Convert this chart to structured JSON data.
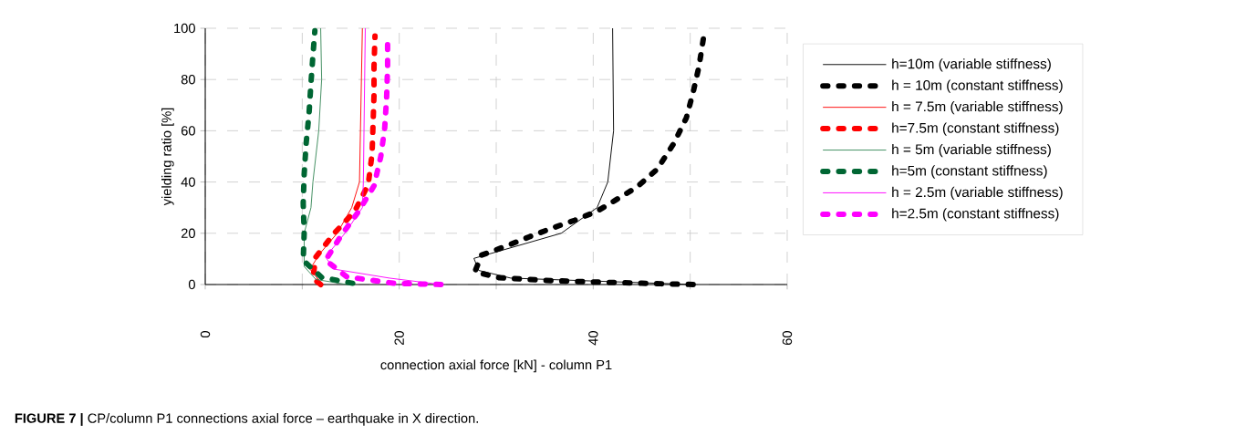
{
  "chart_data": {
    "type": "line",
    "xlabel": "connection axial force [kN] - column P1",
    "ylabel": "yielding ratio [%]",
    "annotations": [
      "**FIGURE 7 |** CP/column P1 connections axial force – earthquake in X direction."
    ],
    "xlim": [
      0,
      60
    ],
    "ylim": [
      0,
      100
    ],
    "xticks": [
      0,
      {
        "value": 10,
        "label": null
      },
      20,
      {
        "value": 30,
        "label": null
      },
      40,
      {
        "value": 50,
        "label": null
      },
      60
    ],
    "yticks": [
      0,
      20,
      40,
      60,
      80,
      100
    ],
    "grid": true,
    "legend": "right",
    "series": [
      {
        "name": "h=10m (variable stiffness)",
        "color": "#000000",
        "line_style": "solid",
        "x": [
          50.3,
          31.5,
          28.2,
          27.7,
          36.7,
          40.4,
          41.5,
          42.1,
          42.0
        ],
        "values": [
          0,
          2.5,
          5.5,
          10.2,
          20,
          30,
          40,
          60,
          100
        ]
      },
      {
        "name": "h = 10m (constant stiffness)",
        "color": "#000000",
        "line_style": "dashed",
        "x": [
          50.3,
          45,
          40,
          35,
          30.2,
          27.8,
          28.5,
          30.9,
          33.4,
          35.6,
          38.1,
          40.4,
          42.2,
          44.5,
          46.6,
          48.3,
          49.6,
          50.3,
          50.9,
          51.4
        ],
        "values": [
          0,
          0.5,
          1,
          1.6,
          2.7,
          5,
          11.5,
          14.8,
          18.6,
          21.8,
          25.1,
          28.6,
          32.7,
          38,
          45,
          55,
          65,
          75,
          85,
          97
        ]
      },
      {
        "name": "h = 7.5m (variable stiffness)",
        "color": "#ff0000",
        "line_style": "solid",
        "x": [
          12.1,
          11.8,
          10.8,
          11.8,
          13.6,
          15.1,
          15.9,
          16.2
        ],
        "values": [
          0,
          1.3,
          6,
          12,
          20,
          30,
          40,
          100
        ]
      },
      {
        "name": "h=7.5m (constant stiffness)",
        "color": "#ff0000",
        "line_style": "dashed",
        "x": [
          11.9,
          11.1,
          11.4,
          13.3,
          15.4,
          16.8,
          17.2,
          17.3,
          17.4,
          17.4,
          17.5
        ],
        "values": [
          0,
          2.5,
          10.7,
          20,
          28.5,
          39,
          51,
          62.5,
          74,
          85,
          97
        ]
      },
      {
        "name": "h = 5m (variable stiffness)",
        "color": "#3a8a5a",
        "line_style": "solid",
        "x": [
          14.6,
          11.4,
          10.2,
          10.2,
          10.9,
          11.1,
          11.7,
          12.0,
          11.9
        ],
        "values": [
          0,
          2,
          7,
          20,
          30,
          40,
          60,
          80,
          100
        ]
      },
      {
        "name": "h=5m (constant stiffness)",
        "color": "#006633",
        "line_style": "dashed",
        "x": [
          15.2,
          12.0,
          10.1,
          10.2,
          10.1,
          10.2,
          10.4,
          10.7,
          10.9,
          11.1,
          11.3
        ],
        "values": [
          0.5,
          2.8,
          9.4,
          20,
          31.8,
          43,
          55,
          66.8,
          78.6,
          89.3,
          99
        ]
      },
      {
        "name": "h = 2.5m (variable stiffness)",
        "color": "#ff00ff",
        "line_style": "solid",
        "x": [
          24.3,
          19.0,
          13.3,
          12.4,
          14.4,
          16.2,
          16.3,
          16.5
        ],
        "values": [
          0,
          2.5,
          6,
          10.7,
          20,
          30,
          40,
          100
        ]
      },
      {
        "name": "h=2.5m (constant stiffness)",
        "color": "#ff00ff",
        "line_style": "dashed",
        "x": [
          24.3,
          19.4,
          14.6,
          12.4,
          14.0,
          15.8,
          17.4,
          18.1,
          18.5,
          18.7,
          18.8,
          18.8
        ],
        "values": [
          0,
          0.5,
          3,
          9.5,
          19,
          28.5,
          38.5,
          50,
          61,
          73,
          85,
          95
        ]
      }
    ]
  }
}
